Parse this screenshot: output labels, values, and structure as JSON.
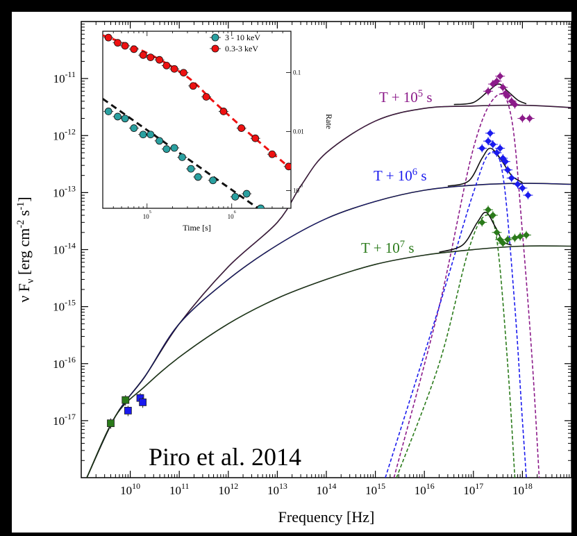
{
  "chart_data": [
    {
      "type": "scatter",
      "role": "main",
      "xlabel_parts": [
        "Frequency [Hz]"
      ],
      "ylabel_parts": [
        "ν F",
        "ν",
        " [erg cm",
        "-2",
        " s",
        "-1",
        "]"
      ],
      "x_log": true,
      "y_log": true,
      "xlim": [
        1000000000.0,
        1e+19
      ],
      "ylim": [
        1e-18,
        1e-10
      ],
      "x_ticks": [
        {
          "base": "10",
          "exp": "10",
          "value": 10000000000.0
        },
        {
          "base": "10",
          "exp": "11",
          "value": 100000000000.0
        },
        {
          "base": "10",
          "exp": "12",
          "value": 1000000000000.0
        },
        {
          "base": "10",
          "exp": "13",
          "value": 10000000000000.0
        },
        {
          "base": "10",
          "exp": "14",
          "value": 100000000000000.0
        },
        {
          "base": "10",
          "exp": "15",
          "value": 1000000000000000.0
        },
        {
          "base": "10",
          "exp": "16",
          "value": 1e+16
        },
        {
          "base": "10",
          "exp": "17",
          "value": 1e+17
        },
        {
          "base": "10",
          "exp": "18",
          "value": 1e+18
        }
      ],
      "y_ticks": [
        {
          "base": "10",
          "exp": "-11",
          "value": 1e-11
        },
        {
          "base": "10",
          "exp": "-12",
          "value": 1e-12
        },
        {
          "base": "10",
          "exp": "-13",
          "value": 1e-13
        },
        {
          "base": "10",
          "exp": "-14",
          "value": 1e-14
        },
        {
          "base": "10",
          "exp": "-15",
          "value": 1e-15
        },
        {
          "base": "10",
          "exp": "-16",
          "value": 1e-16
        },
        {
          "base": "10",
          "exp": "-17",
          "value": 1e-17
        }
      ],
      "series": [
        {
          "name_parts": [
            "T + 10",
            "5",
            " s"
          ],
          "color": "#8b1a89",
          "model_solid": [
            [
              1300000000.0,
              1e-18
            ],
            [
              5000000000.0,
              1.2e-17
            ],
            [
              20000000000.0,
              6e-17
            ],
            [
              100000000000.0,
              5e-16
            ],
            [
              1000000000000.0,
              5e-15
            ],
            [
              10000000000000.0,
              3e-14
            ],
            [
              30000000000000.0,
              1.3e-13
            ],
            [
              100000000000000.0,
              5e-13
            ],
            [
              1000000000000000.0,
              1.8e-12
            ],
            [
              1e+16,
              3e-12
            ],
            [
              1e+17,
              3.3e-12
            ],
            [
              1e+18,
              3.4e-12
            ],
            [
              1e+19,
              3.1e-12
            ]
          ],
          "model_dashed": [
            [
              2400000000000000.0,
              1e-18
            ],
            [
              2e+16,
              1e-15
            ],
            [
              1e+17,
              6e-13
            ],
            [
              3e+17,
              5e-12
            ],
            [
              6e+17,
              2e-12
            ],
            [
              1e+18,
              2e-14
            ],
            [
              1.6e+18,
              1e-16
            ],
            [
              2.2e+18,
              1e-18
            ]
          ],
          "model_total": [
            [
              4e+16,
              3.5e-12
            ],
            [
              1e+17,
              3.8e-12
            ],
            [
              2e+17,
              6e-12
            ],
            [
              3.3e+17,
              8e-12
            ],
            [
              5e+17,
              6e-12
            ],
            [
              8e+17,
              4.2e-12
            ],
            [
              1.2e+18,
              3.6e-12
            ]
          ],
          "points": [
            [
              2e+17,
              6e-12
            ],
            [
              2.5e+17,
              8e-12
            ],
            [
              3e+17,
              9e-12
            ],
            [
              3.5e+17,
              1.1e-11
            ],
            [
              4e+17,
              7e-12
            ],
            [
              4.5e+17,
              5.5e-12
            ],
            [
              5e+17,
              5e-12
            ],
            [
              6e+17,
              4e-12
            ],
            [
              7e+17,
              3.5e-12
            ],
            [
              1e+18,
              2e-12
            ],
            [
              1.4e+18,
              2e-12
            ]
          ]
        },
        {
          "name_parts": [
            "T + 10",
            "6",
            " s"
          ],
          "color": "#1a1aee",
          "model_solid": [
            [
              1300000000.0,
              1e-18
            ],
            [
              5000000000.0,
              1.2e-17
            ],
            [
              20000000000.0,
              6e-17
            ],
            [
              100000000000.0,
              5e-16
            ],
            [
              1000000000000.0,
              3e-15
            ],
            [
              10000000000000.0,
              1.2e-14
            ],
            [
              100000000000000.0,
              3.5e-14
            ],
            [
              1000000000000000.0,
              7e-14
            ],
            [
              1e+16,
              1.1e-13
            ],
            [
              1e+17,
              1.35e-13
            ],
            [
              1e+18,
              1.45e-13
            ],
            [
              1e+19,
              1.4e-13
            ]
          ],
          "model_dashed": [
            [
              1600000000000000.0,
              1e-18
            ],
            [
              2e+16,
              1e-15
            ],
            [
              1e+17,
              1e-13
            ],
            [
              2.2e+17,
              5e-13
            ],
            [
              4e+17,
              2e-13
            ],
            [
              7e+17,
              1e-15
            ],
            [
              1e+18,
              1e-17
            ],
            [
              1.2e+18,
              1e-18
            ]
          ],
          "model_total": [
            [
              3e+16,
              1.3e-13
            ],
            [
              8e+16,
              1.6e-13
            ],
            [
              1.5e+17,
              4e-13
            ],
            [
              2.2e+17,
              6e-13
            ],
            [
              3.5e+17,
              4e-13
            ],
            [
              6e+17,
              2e-13
            ],
            [
              1e+18,
              1.5e-13
            ]
          ],
          "points": [
            [
              1.5e+17,
              6e-13
            ],
            [
              2e+17,
              8e-13
            ],
            [
              2.2e+17,
              1.1e-12
            ],
            [
              2.5e+17,
              7e-13
            ],
            [
              3e+17,
              5e-13
            ],
            [
              3.5e+17,
              6e-13
            ],
            [
              4e+17,
              4e-13
            ],
            [
              4.5e+17,
              3.5e-13
            ],
            [
              5e+17,
              2.5e-13
            ],
            [
              6e+17,
              1.8e-13
            ],
            [
              8e+17,
              1.4e-13
            ],
            [
              1e+18,
              1.2e-13
            ],
            [
              1.3e+18,
              9e-14
            ]
          ],
          "radio_points": [
            [
              9000000000.0,
              1.5e-17
            ],
            [
              16000000000.0,
              2.5e-17
            ],
            [
              18000000000.0,
              2.1e-17
            ]
          ]
        },
        {
          "name_parts": [
            "T +  10",
            "7",
            " s"
          ],
          "color": "#2a7a1a",
          "model_solid": [
            [
              1300000000.0,
              1e-18
            ],
            [
              5000000000.0,
              1.2e-17
            ],
            [
              20000000000.0,
              4e-17
            ],
            [
              100000000000.0,
              1.3e-16
            ],
            [
              1000000000000.0,
              5e-16
            ],
            [
              10000000000000.0,
              1.4e-15
            ],
            [
              100000000000000.0,
              3e-15
            ],
            [
              1000000000000000.0,
              5.5e-15
            ],
            [
              1e+16,
              8e-15
            ],
            [
              1e+17,
              1e-14
            ],
            [
              1e+18,
              1.15e-14
            ],
            [
              1e+19,
              1.15e-14
            ]
          ],
          "model_dashed": [
            [
              2700000000000000.0,
              1e-18
            ],
            [
              2e+16,
              1e-16
            ],
            [
              8e+16,
              1e-14
            ],
            [
              1.8e+17,
              4e-14
            ],
            [
              3e+17,
              1.5e-14
            ],
            [
              5e+17,
              1e-16
            ],
            [
              7e+17,
              1e-18
            ]
          ],
          "model_total": [
            [
              2e+16,
              9e-15
            ],
            [
              6e+16,
              1.2e-14
            ],
            [
              1.2e+17,
              3e-14
            ],
            [
              1.8e+17,
              4.5e-14
            ],
            [
              2.8e+17,
              2.5e-14
            ],
            [
              4e+17,
              1.4e-14
            ],
            [
              6e+17,
              1.2e-14
            ]
          ],
          "points": [
            [
              1.5e+17,
              3e-14
            ],
            [
              2e+17,
              5e-14
            ],
            [
              2.5e+17,
              4e-14
            ],
            [
              3e+17,
              2e-14
            ],
            [
              3.5e+17,
              1.5e-14
            ],
            [
              4e+17,
              1.3e-14
            ],
            [
              5e+17,
              1.5e-14
            ],
            [
              7e+17,
              1.6e-14
            ],
            [
              9e+17,
              1.7e-14
            ],
            [
              1.2e+18,
              1.8e-14
            ]
          ],
          "radio_points": [
            [
              4000000000.0,
              9e-18
            ],
            [
              8000000000.0,
              2.3e-17
            ]
          ]
        }
      ]
    },
    {
      "type": "scatter",
      "role": "inset",
      "xlabel": "Time [s]",
      "ylabel": "Rate",
      "x_log": true,
      "y_log": true,
      "xlim": [
        30000,
        5000000
      ],
      "ylim_left": [
        3e-13,
        1.5e-10
      ],
      "ylim_right": [
        0.0005,
        0.5
      ],
      "x_ticks": [
        {
          "base": "10",
          "exp": "5",
          "value": 100000.0
        },
        {
          "base": "10",
          "exp": "6",
          "value": 1000000.0
        }
      ],
      "right_ticks": [
        {
          "text": "0.1",
          "value": 0.1
        },
        {
          "text": "0.01",
          "value": 0.01
        },
        {
          "base": "10",
          "exp": "-3",
          "value": 0.001
        }
      ],
      "legend": [
        "3 - 10 keV",
        "0.3-3 keV"
      ],
      "series": [
        {
          "name": "3 - 10 keV",
          "color": "#2aa0a0",
          "fit_color": "#111111",
          "points": [
            [
              35000,
              9e-12
            ],
            [
              45000,
              7.5e-12
            ],
            [
              55000,
              7e-12
            ],
            [
              70000,
              5e-12
            ],
            [
              90000,
              4e-12
            ],
            [
              110000,
              4e-12
            ],
            [
              140000,
              3.2e-12
            ],
            [
              170000,
              2.4e-12
            ],
            [
              210000,
              2.5e-12
            ],
            [
              260000,
              1.8e-12
            ],
            [
              330000,
              1.2e-12
            ],
            [
              400000,
              9e-13
            ],
            [
              600000,
              8e-13
            ],
            [
              1100000,
              4.5e-13
            ],
            [
              1500000,
              5e-13
            ],
            [
              2200000,
              3e-13
            ]
          ],
          "fit": [
            [
              30000,
              1.4e-11
            ],
            [
              2200000,
              2.8e-13
            ]
          ]
        },
        {
          "name": "0.3-3 keV",
          "color": "#ee1111",
          "fit_color": "#ee1111",
          "points": [
            [
              35000,
              1.2e-10
            ],
            [
              45000,
              1e-10
            ],
            [
              55000,
              9e-11
            ],
            [
              70000,
              8e-11
            ],
            [
              90000,
              6.5e-11
            ],
            [
              110000,
              6e-11
            ],
            [
              140000,
              5.5e-11
            ],
            [
              170000,
              4.5e-11
            ],
            [
              210000,
              4e-11
            ],
            [
              270000,
              3.5e-11
            ],
            [
              350000,
              2.2e-11
            ],
            [
              500000,
              1.5e-11
            ],
            [
              800000,
              9e-12
            ],
            [
              1300000,
              5e-12
            ],
            [
              1900000,
              3.5e-12
            ],
            [
              3000000,
              2e-12
            ],
            [
              4700000,
              1.3e-12
            ]
          ],
          "fit": [
            [
              30000,
              1.3e-10
            ],
            [
              100000,
              7e-11
            ],
            [
              300000,
              3e-11
            ],
            [
              600000,
              1.3e-11
            ],
            [
              1500000,
              4.5e-12
            ],
            [
              5000000,
              1.2e-12
            ]
          ]
        }
      ]
    }
  ],
  "annotation": {
    "credit": "Piro et al. 2014"
  }
}
